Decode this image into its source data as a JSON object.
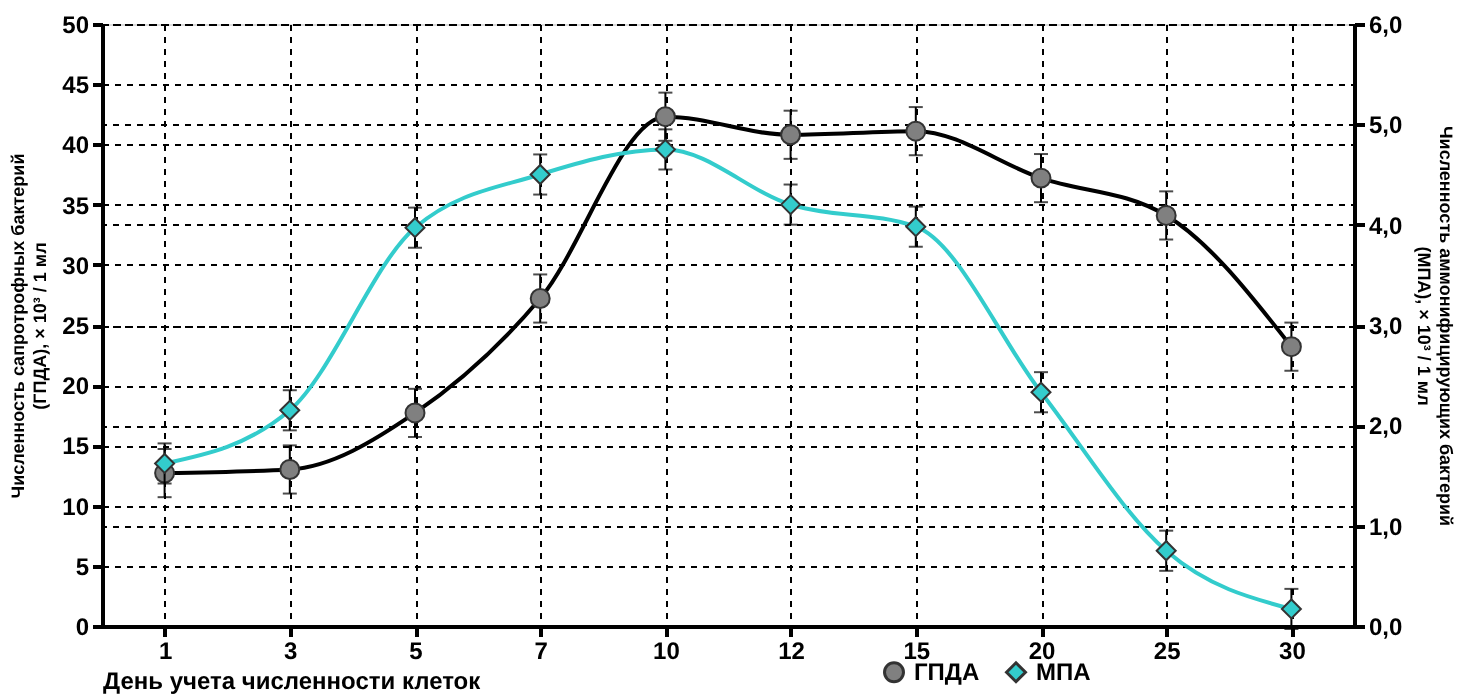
{
  "chart_data": {
    "type": "line",
    "xlabel": "День учета численности клеток",
    "ylabel": "Численность сапротрофных бактерий\n(ГПДА), × 10³ / 1 мл",
    "y2label": "Численность аммонифицирующих бактерий\n(МПА), × 10³ / 1 мл",
    "categories": [
      "1",
      "3",
      "5",
      "7",
      "10",
      "12",
      "15",
      "20",
      "25",
      "30"
    ],
    "series": [
      {
        "name": "ГПДА",
        "color": "#000000",
        "marker": "circle",
        "values": [
          12.7,
          13.0,
          17.7,
          27.2,
          42.3,
          40.8,
          41.1,
          37.2,
          34.1,
          23.2
        ],
        "errors": [
          2,
          2,
          2,
          2,
          2,
          2,
          2,
          2,
          2,
          2
        ]
      },
      {
        "name": "МПА",
        "color": "#33cccc",
        "marker": "diamond",
        "axis": "y2",
        "values": [
          1.62,
          2.15,
          3.97,
          4.5,
          4.75,
          4.2,
          3.98,
          2.33,
          0.75,
          0.17
        ],
        "errors": [
          0.2,
          0.2,
          0.2,
          0.2,
          0.2,
          0.2,
          0.2,
          0.2,
          0.2,
          0.2
        ]
      }
    ],
    "ylim": [
      0,
      50
    ],
    "yticks": [
      0,
      5,
      10,
      15,
      20,
      25,
      30,
      35,
      40,
      45,
      50
    ],
    "y2lim": [
      0,
      6
    ],
    "y2ticks": [
      {
        "value": 0,
        "label": "0,0"
      },
      {
        "value": 1,
        "label": "1,0"
      },
      {
        "value": 2,
        "label": "2,0"
      },
      {
        "value": 3,
        "label": "3,0"
      },
      {
        "value": 4,
        "label": "4,0"
      },
      {
        "value": 5,
        "label": "5,0"
      },
      {
        "value": 6,
        "label": "6,0"
      }
    ],
    "grid": true,
    "legend": "bottom right"
  }
}
